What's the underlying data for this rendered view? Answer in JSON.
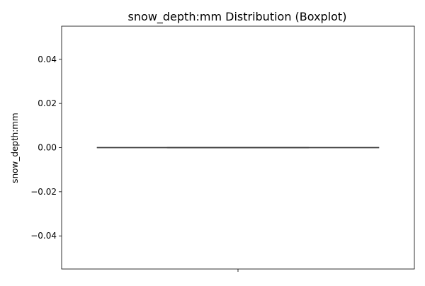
{
  "chart_data": {
    "type": "boxplot",
    "title": "snow_depth:mm Distribution (Boxplot)",
    "xlabel": "",
    "ylabel": "snow_depth:mm",
    "ylim": [
      -0.055,
      0.055
    ],
    "yticks": [
      0.04,
      0.02,
      0.0,
      -0.02,
      -0.04
    ],
    "ytick_labels": [
      "0.04",
      "0.02",
      "0.00",
      "−0.02",
      "−0.04"
    ],
    "xticks": [
      ""
    ],
    "grid": false,
    "series": [
      {
        "min": 0,
        "q1": 0,
        "median": 0,
        "q3": 0,
        "max": 0,
        "outliers": []
      }
    ],
    "colors": {
      "box_line": "#3f3f3f",
      "axis": "#000000",
      "background": "#ffffff"
    }
  }
}
